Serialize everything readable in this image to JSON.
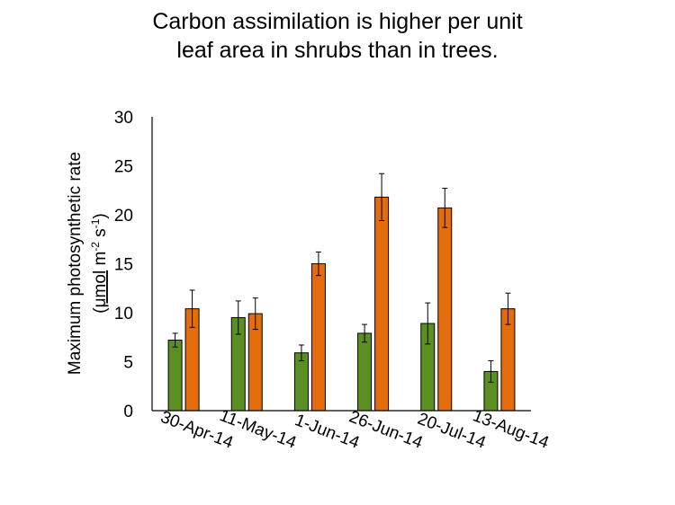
{
  "chart_data": {
    "type": "bar",
    "title_lines": [
      "Carbon assimilation is higher per unit",
      "leaf area in shrubs than in trees."
    ],
    "ylabel_line1": "Maximum photosynthetic rate",
    "ylabel_line2": {
      "open": "(",
      "unit1": "μmol",
      "m": " m",
      "exp1": "-2",
      "s": " s",
      "exp2": "-1",
      "close": ")"
    },
    "xlabel": "",
    "categories": [
      "30-Apr-14",
      "11-May-14",
      "1-Jun-14",
      "26-Jun-14",
      "20-Jul-14",
      "13-Aug-14"
    ],
    "series": [
      {
        "color": "#5b8f22",
        "values": [
          7.2,
          9.5,
          5.9,
          7.9,
          8.9,
          4.0
        ],
        "errors": [
          0.7,
          1.7,
          0.8,
          0.9,
          2.1,
          1.1
        ]
      },
      {
        "color": "#e46c0a",
        "values": [
          10.4,
          9.9,
          15.0,
          21.8,
          20.7,
          10.4
        ],
        "errors": [
          1.9,
          1.6,
          1.2,
          2.4,
          2.0,
          1.6
        ]
      }
    ],
    "ylim": [
      0,
      30
    ],
    "yticks": [
      0,
      5,
      10,
      15,
      20,
      25,
      30
    ],
    "grid": false,
    "legend": "none"
  }
}
